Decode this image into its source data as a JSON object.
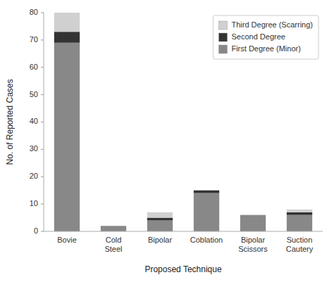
{
  "chart_data": {
    "type": "bar",
    "stacked": true,
    "categories": [
      "Bovie",
      "Cold\nSteel",
      "Bipolar",
      "Coblation",
      "Bipolar\nScissors",
      "Suction\nCautery"
    ],
    "series": [
      {
        "name": "First Degree (Minor)",
        "color": "#888888",
        "values": [
          69,
          2,
          4,
          14,
          6,
          6
        ]
      },
      {
        "name": "Second Degree",
        "color": "#333333",
        "values": [
          4,
          0,
          1,
          1,
          0,
          1
        ]
      },
      {
        "name": "Third Degree (Scarring)",
        "color": "#d0d0d0",
        "values": [
          7,
          0,
          2,
          0,
          0,
          1
        ]
      }
    ],
    "xlabel": "Proposed Technique",
    "ylabel": "No. of Reported Cases",
    "ylim": [
      0,
      80
    ],
    "yticks": [
      0,
      10,
      20,
      30,
      40,
      50,
      60,
      70,
      80
    ],
    "grid": false,
    "legend": "upper right"
  }
}
